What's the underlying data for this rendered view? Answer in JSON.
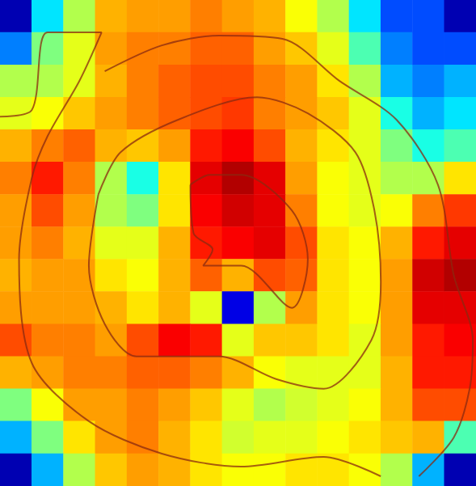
{
  "chart_data": {
    "type": "heatmap",
    "tick_labels": false,
    "color_range": [
      0,
      1
    ],
    "cells": [
      [
        0.05,
        0.35,
        0.55,
        0.7,
        0.72,
        0.72,
        0.75,
        0.72,
        0.7,
        0.62,
        0.55,
        0.35,
        0.2,
        0.2,
        0.05
      ],
      [
        0.25,
        0.5,
        0.6,
        0.72,
        0.75,
        0.75,
        0.78,
        0.78,
        0.72,
        0.68,
        0.6,
        0.45,
        0.25,
        0.2,
        0.2
      ],
      [
        0.55,
        0.55,
        0.6,
        0.7,
        0.75,
        0.78,
        0.8,
        0.8,
        0.75,
        0.72,
        0.65,
        0.55,
        0.3,
        0.25,
        0.3
      ],
      [
        0.6,
        0.62,
        0.68,
        0.72,
        0.75,
        0.78,
        0.8,
        0.82,
        0.75,
        0.72,
        0.68,
        0.6,
        0.4,
        0.3,
        0.35
      ],
      [
        0.7,
        0.75,
        0.78,
        0.7,
        0.68,
        0.72,
        0.85,
        0.88,
        0.8,
        0.7,
        0.65,
        0.6,
        0.5,
        0.4,
        0.45
      ],
      [
        0.75,
        0.85,
        0.75,
        0.55,
        0.4,
        0.65,
        0.9,
        0.95,
        0.9,
        0.72,
        0.62,
        0.6,
        0.55,
        0.55,
        0.65
      ],
      [
        0.72,
        0.8,
        0.72,
        0.55,
        0.5,
        0.65,
        0.88,
        0.92,
        0.9,
        0.75,
        0.62,
        0.6,
        0.62,
        0.75,
        0.82
      ],
      [
        0.72,
        0.75,
        0.7,
        0.6,
        0.6,
        0.7,
        0.85,
        0.88,
        0.9,
        0.8,
        0.65,
        0.62,
        0.7,
        0.85,
        0.9
      ],
      [
        0.7,
        0.72,
        0.72,
        0.65,
        0.62,
        0.7,
        0.78,
        0.7,
        0.8,
        0.78,
        0.65,
        0.62,
        0.72,
        0.92,
        0.95
      ],
      [
        0.72,
        0.72,
        0.72,
        0.7,
        0.65,
        0.7,
        0.6,
        0.1,
        0.55,
        0.72,
        0.65,
        0.62,
        0.72,
        0.9,
        0.9
      ],
      [
        0.8,
        0.75,
        0.75,
        0.72,
        0.8,
        0.88,
        0.85,
        0.6,
        0.68,
        0.68,
        0.65,
        0.6,
        0.72,
        0.85,
        0.88
      ],
      [
        0.7,
        0.72,
        0.75,
        0.75,
        0.78,
        0.78,
        0.75,
        0.7,
        0.62,
        0.6,
        0.6,
        0.6,
        0.7,
        0.85,
        0.85
      ],
      [
        0.5,
        0.62,
        0.72,
        0.72,
        0.75,
        0.72,
        0.68,
        0.6,
        0.55,
        0.58,
        0.6,
        0.62,
        0.7,
        0.8,
        0.8
      ],
      [
        0.3,
        0.5,
        0.65,
        0.72,
        0.75,
        0.7,
        0.65,
        0.58,
        0.6,
        0.6,
        0.62,
        0.65,
        0.68,
        0.7,
        0.45
      ],
      [
        0.05,
        0.3,
        0.55,
        0.68,
        0.72,
        0.7,
        0.65,
        0.62,
        0.62,
        0.65,
        0.65,
        0.62,
        0.55,
        0.3,
        0.05
      ]
    ],
    "contours": [
      [
        [
          0,
          3.6
        ],
        [
          1.0,
          3.4
        ],
        [
          1.5,
          1.0
        ],
        [
          3.2,
          1.0
        ],
        [
          2.5,
          2.5
        ],
        [
          1.5,
          4.2
        ],
        [
          1.0,
          5.5
        ],
        [
          0.6,
          8.0
        ],
        [
          1.0,
          11.2
        ],
        [
          2.8,
          13.0
        ],
        [
          5.1,
          14.0
        ],
        [
          7.6,
          14.4
        ],
        [
          10.2,
          14.1
        ],
        [
          12.0,
          14.7
        ]
      ],
      [
        [
          3.3,
          2.2
        ],
        [
          5.1,
          1.4
        ],
        [
          6.9,
          1.1
        ],
        [
          8.9,
          1.2
        ],
        [
          10.7,
          2.5
        ],
        [
          12.5,
          3.7
        ],
        [
          13.8,
          5.7
        ],
        [
          14.3,
          8.5
        ],
        [
          14.9,
          10.5
        ],
        [
          14.8,
          12.0
        ],
        [
          14.3,
          13.5
        ],
        [
          13.2,
          14.7
        ]
      ],
      [
        [
          3.1,
          6.0
        ],
        [
          3.8,
          4.7
        ],
        [
          5.6,
          3.7
        ],
        [
          8.1,
          3.0
        ],
        [
          9.7,
          3.5
        ],
        [
          11.2,
          4.7
        ],
        [
          11.8,
          6.5
        ],
        [
          12.0,
          8.7
        ],
        [
          11.7,
          10.5
        ],
        [
          10.2,
          12.0
        ],
        [
          8.7,
          11.7
        ],
        [
          6.9,
          11.0
        ],
        [
          4.3,
          11.0
        ],
        [
          3.3,
          10.0
        ],
        [
          2.8,
          8.2
        ],
        [
          3.1,
          6.0
        ]
      ],
      [
        [
          6.0,
          5.7
        ],
        [
          6.6,
          5.4
        ],
        [
          7.6,
          5.4
        ],
        [
          9.2,
          6.5
        ],
        [
          9.7,
          8.0
        ],
        [
          9.2,
          9.5
        ],
        [
          7.6,
          8.2
        ],
        [
          6.4,
          8.2
        ],
        [
          6.7,
          7.7
        ],
        [
          6.1,
          7.2
        ],
        [
          6.0,
          5.7
        ]
      ]
    ]
  }
}
